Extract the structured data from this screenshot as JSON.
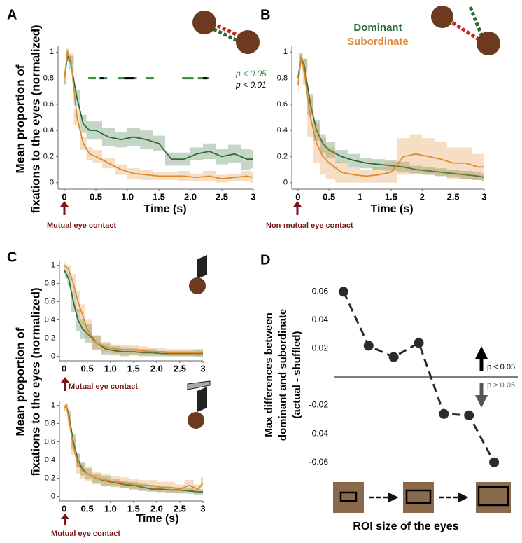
{
  "chart_data": [
    {
      "type": "line",
      "label": "A",
      "ylabel": [
        "Mean proportion of",
        "fixations to the eyes (normalized)"
      ],
      "xlabel": "Time (s)",
      "annotation": "Mutual eye contact",
      "x": [
        0,
        0.05,
        0.1,
        0.2,
        0.3,
        0.4,
        0.5,
        0.7,
        0.9,
        1.1,
        1.3,
        1.5,
        1.7,
        1.9,
        2.1,
        2.3,
        2.5,
        2.7,
        2.9,
        3.0
      ],
      "series": [
        {
          "color": "#2e6b34",
          "values": [
            0.8,
            0.97,
            0.92,
            0.65,
            0.45,
            0.4,
            0.4,
            0.35,
            0.33,
            0.35,
            0.33,
            0.3,
            0.18,
            0.18,
            0.22,
            0.24,
            0.2,
            0.22,
            0.18,
            0.18
          ],
          "error": [
            0.05,
            0.04,
            0.05,
            0.06,
            0.07,
            0.07,
            0.07,
            0.07,
            0.06,
            0.07,
            0.07,
            0.06,
            0.05,
            0.05,
            0.05,
            0.06,
            0.06,
            0.07,
            0.08,
            0.07
          ]
        },
        {
          "color": "#e08a2e",
          "values": [
            0.8,
            1.0,
            0.95,
            0.5,
            0.3,
            0.22,
            0.2,
            0.15,
            0.1,
            0.07,
            0.06,
            0.05,
            0.05,
            0.05,
            0.04,
            0.05,
            0.03,
            0.04,
            0.05,
            0.04
          ],
          "error": [
            0.04,
            0.03,
            0.04,
            0.06,
            0.05,
            0.05,
            0.05,
            0.04,
            0.04,
            0.04,
            0.04,
            0.03,
            0.03,
            0.04,
            0.03,
            0.04,
            0.03,
            0.03,
            0.04,
            0.04
          ]
        }
      ],
      "significance": [
        {
          "name": "p < 0.05",
          "color": "#2e8b3a",
          "y": 0.8,
          "ranges": [
            [
              0.38,
              0.5
            ],
            [
              0.55,
              0.68
            ],
            [
              0.85,
              1.15
            ],
            [
              1.3,
              1.42
            ],
            [
              1.87,
              2.05
            ],
            [
              2.12,
              2.3
            ]
          ]
        },
        {
          "name": "p < 0.01",
          "color": "#000000",
          "y": 0.8,
          "ranges": [
            [
              0.57,
              0.62
            ],
            [
              0.95,
              1.1
            ],
            [
              2.2,
              2.27
            ]
          ]
        }
      ],
      "xlim": [
        -0.1,
        3
      ],
      "ylim": [
        -0.05,
        1.05
      ],
      "xticks": [
        0,
        0.5,
        {
          "value": 1,
          "label": "1.0"
        },
        1.5,
        {
          "value": 2,
          "label": "2.0"
        },
        2.5,
        3
      ],
      "yticks": [
        0,
        0.2,
        0.4,
        0.6,
        0.8,
        1
      ]
    },
    {
      "type": "line",
      "label": "B",
      "xlabel": "Time (s)",
      "annotation": "Non-mutual eye contact",
      "x": [
        0,
        0.05,
        0.1,
        0.2,
        0.3,
        0.4,
        0.5,
        0.7,
        0.9,
        1.1,
        1.3,
        1.5,
        1.7,
        1.9,
        2.1,
        2.3,
        2.5,
        2.7,
        2.9,
        3.0
      ],
      "series": [
        {
          "name": "Dominant",
          "color": "#2e6b34",
          "values": [
            0.8,
            0.95,
            0.9,
            0.6,
            0.4,
            0.3,
            0.25,
            0.2,
            0.17,
            0.15,
            0.14,
            0.13,
            0.12,
            0.1,
            0.09,
            0.08,
            0.07,
            0.06,
            0.05,
            0.04
          ],
          "error": [
            0.05,
            0.04,
            0.05,
            0.08,
            0.08,
            0.07,
            0.06,
            0.05,
            0.05,
            0.04,
            0.04,
            0.04,
            0.04,
            0.03,
            0.03,
            0.03,
            0.03,
            0.03,
            0.03,
            0.03
          ]
        },
        {
          "name": "Subordinate",
          "color": "#e08a2e",
          "values": [
            0.75,
            0.95,
            0.85,
            0.5,
            0.3,
            0.2,
            0.15,
            0.08,
            0.06,
            0.05,
            0.06,
            0.08,
            0.2,
            0.22,
            0.2,
            0.18,
            0.15,
            0.15,
            0.12,
            0.12
          ],
          "error": [
            0.06,
            0.04,
            0.1,
            0.15,
            0.15,
            0.14,
            0.12,
            0.08,
            0.06,
            0.05,
            0.06,
            0.08,
            0.14,
            0.15,
            0.14,
            0.13,
            0.12,
            0.12,
            0.1,
            0.1
          ]
        }
      ],
      "xlim": [
        -0.1,
        3
      ],
      "ylim": [
        -0.05,
        1.05
      ],
      "xticks": [
        0,
        0.5,
        1,
        1.5,
        2,
        2.5,
        3
      ],
      "yticks": [
        0,
        0.2,
        0.4,
        0.6,
        0.8,
        1
      ]
    },
    {
      "type": "line",
      "label": "C",
      "ylabel": [
        "Mean proportion of",
        "fixations to the eyes (normalized)"
      ],
      "annotation": "Mutual eye contact",
      "x": [
        0,
        0.05,
        0.1,
        0.2,
        0.3,
        0.4,
        0.5,
        0.7,
        0.9,
        1.1,
        1.3,
        1.5,
        1.7,
        1.9,
        2.1,
        2.3,
        2.5,
        2.7,
        2.9,
        3.0
      ],
      "series": [
        {
          "color": "#2e6b34",
          "values": [
            0.95,
            0.9,
            0.85,
            0.6,
            0.4,
            0.3,
            0.25,
            0.15,
            0.08,
            0.06,
            0.05,
            0.05,
            0.04,
            0.04,
            0.03,
            0.03,
            0.03,
            0.03,
            0.03,
            0.03
          ],
          "error": [
            0.04,
            0.05,
            0.07,
            0.12,
            0.12,
            0.11,
            0.1,
            0.08,
            0.06,
            0.05,
            0.05,
            0.04,
            0.04,
            0.04,
            0.03,
            0.03,
            0.03,
            0.03,
            0.04,
            0.04
          ]
        },
        {
          "color": "#e08a2e",
          "values": [
            1.0,
            0.98,
            0.95,
            0.8,
            0.6,
            0.45,
            0.3,
            0.15,
            0.1,
            0.08,
            0.07,
            0.07,
            0.06,
            0.05,
            0.05,
            0.04,
            0.04,
            0.04,
            0.04,
            0.04
          ],
          "error": [
            0.03,
            0.03,
            0.05,
            0.1,
            0.12,
            0.12,
            0.1,
            0.07,
            0.06,
            0.05,
            0.05,
            0.05,
            0.05,
            0.04,
            0.04,
            0.04,
            0.04,
            0.04,
            0.04,
            0.04
          ]
        }
      ],
      "xlim": [
        -0.1,
        3
      ],
      "ylim": [
        -0.05,
        1.05
      ],
      "xticks": [
        0,
        0.5,
        {
          "value": 1,
          "label": "1.0"
        },
        1.5,
        {
          "value": 2,
          "label": "2.0"
        },
        2.5,
        3
      ],
      "yticks": [
        0,
        0.2,
        0.4,
        0.6,
        0.8,
        1
      ]
    },
    {
      "type": "line",
      "xlabel": "Time (s)",
      "annotation": "Mutual eye contact",
      "x": [
        0,
        0.05,
        0.1,
        0.2,
        0.3,
        0.4,
        0.5,
        0.7,
        0.9,
        1.1,
        1.3,
        1.5,
        1.7,
        1.9,
        2.1,
        2.3,
        2.5,
        2.7,
        2.9,
        3.0
      ],
      "series": [
        {
          "color": "#2e6b34",
          "values": [
            0.97,
            1.0,
            0.9,
            0.6,
            0.4,
            0.3,
            0.25,
            0.2,
            0.17,
            0.15,
            0.13,
            0.12,
            0.1,
            0.08,
            0.08,
            0.07,
            0.07,
            0.06,
            0.05,
            0.05
          ],
          "error": [
            0.03,
            0.02,
            0.04,
            0.08,
            0.08,
            0.07,
            0.06,
            0.05,
            0.05,
            0.04,
            0.04,
            0.04,
            0.04,
            0.03,
            0.03,
            0.03,
            0.03,
            0.03,
            0.03,
            0.03
          ]
        },
        {
          "color": "#e08a2e",
          "values": [
            0.97,
            1.0,
            0.85,
            0.55,
            0.35,
            0.28,
            0.25,
            0.2,
            0.18,
            0.16,
            0.15,
            0.13,
            0.12,
            0.12,
            0.1,
            0.1,
            0.08,
            0.12,
            0.08,
            0.15
          ],
          "error": [
            0.03,
            0.02,
            0.06,
            0.1,
            0.1,
            0.09,
            0.08,
            0.07,
            0.07,
            0.06,
            0.06,
            0.06,
            0.06,
            0.06,
            0.06,
            0.06,
            0.05,
            0.06,
            0.05,
            0.06
          ]
        }
      ],
      "xlim": [
        -0.1,
        3
      ],
      "ylim": [
        -0.05,
        1.05
      ],
      "xticks": [
        0,
        0.5,
        {
          "value": 1,
          "label": "1.0"
        },
        1.5,
        {
          "value": 2,
          "label": "2.0"
        },
        2.5,
        3
      ],
      "yticks": [
        0,
        0.2,
        0.4,
        0.6,
        0.8,
        1
      ]
    },
    {
      "type": "dotline",
      "label": "D",
      "ylabel": [
        "Max differences between",
        "dominant and subordinate",
        "(actual - shuffled)"
      ],
      "xlabel": "ROI size of the eyes",
      "categories": [
        null,
        null,
        null,
        null,
        null,
        null,
        null
      ],
      "values": [
        0.06,
        0.022,
        0.014,
        0.024,
        -0.026,
        -0.027,
        -0.06
      ],
      "color": "#2b2b2b",
      "hline": 0,
      "annotations": [
        "p < 0.05",
        "p > 0.05"
      ],
      "ylim": [
        -0.07,
        0.07
      ],
      "yticks": [
        0.06,
        0.04,
        0.02,
        -0.02,
        -0.04,
        -0.06
      ]
    }
  ]
}
